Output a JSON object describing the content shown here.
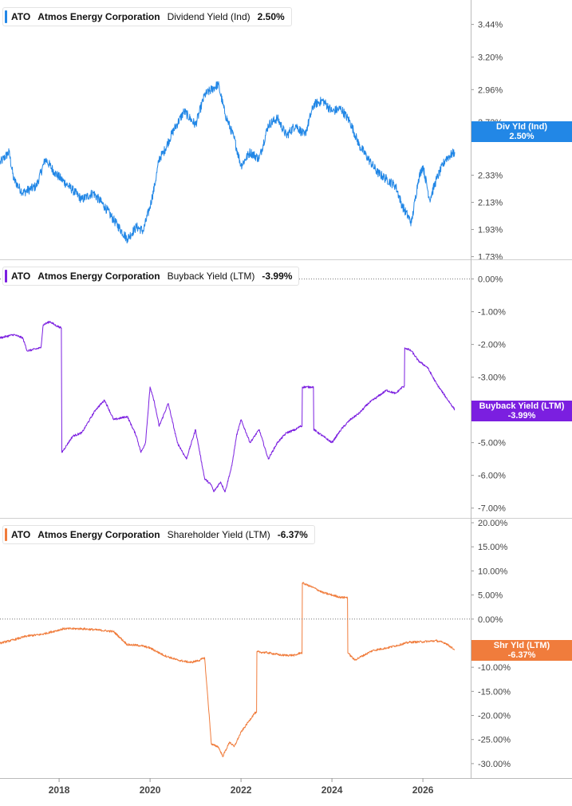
{
  "colors": {
    "dividend": "#2287e6",
    "buyback": "#7b1fe0",
    "shareholder": "#f07c3c"
  },
  "x_axis": {
    "ticks": [
      "2018",
      "2020",
      "2022",
      "2024",
      "2026"
    ]
  },
  "panels": [
    {
      "key": "dividend",
      "legend": {
        "ticker": "ATO",
        "company": "Atmos Energy Corporation",
        "metric": "Dividend Yield (Ind)",
        "value": "2.50%"
      },
      "flag": {
        "label": "Div Yld (Ind)",
        "value": "2.50%"
      },
      "y_ticks": [
        "3.44%",
        "3.20%",
        "2.96%",
        "2.72%",
        "2.33%",
        "2.13%",
        "1.93%",
        "1.73%"
      ]
    },
    {
      "key": "buyback",
      "legend": {
        "ticker": "ATO",
        "company": "Atmos Energy Corporation",
        "metric": "Buyback Yield (LTM)",
        "value": "-3.99%"
      },
      "flag": {
        "label": "Buyback Yield (LTM)",
        "value": "-3.99%"
      },
      "y_ticks": [
        "0.00%",
        "-1.00%",
        "-2.00%",
        "-3.00%",
        "-5.00%",
        "-6.00%",
        "-7.00%"
      ]
    },
    {
      "key": "shareholder",
      "legend": {
        "ticker": "ATO",
        "company": "Atmos Energy Corporation",
        "metric": "Shareholder Yield (LTM)",
        "value": "-6.37%"
      },
      "flag": {
        "label": "Shr Yld (LTM)",
        "value": "-6.37%"
      },
      "y_ticks": [
        "20.00%",
        "15.00%",
        "10.00%",
        "5.00%",
        "0.00%",
        "-5.00%",
        "-10.00%",
        "-15.00%",
        "-20.00%",
        "-25.00%",
        "-30.00%"
      ]
    }
  ],
  "chart_data": [
    {
      "type": "line",
      "title": "ATO Atmos Energy Corporation Dividend Yield (Ind)",
      "xlabel": "",
      "ylabel": "",
      "xlim": [
        2016.7,
        2026.7
      ],
      "ylim": [
        1.71,
        3.62
      ],
      "grid": false,
      "series": [
        {
          "name": "Dividend Yield (Ind)",
          "x": [
            2016.7,
            2016.9,
            2017.0,
            2017.2,
            2017.5,
            2017.7,
            2017.9,
            2018.05,
            2018.3,
            2018.5,
            2018.75,
            2019.0,
            2019.2,
            2019.5,
            2019.7,
            2019.85,
            2020.0,
            2020.1,
            2020.2,
            2020.3,
            2020.5,
            2020.75,
            2021.0,
            2021.2,
            2021.5,
            2021.65,
            2021.85,
            2022.0,
            2022.2,
            2022.4,
            2022.6,
            2022.8,
            2023.0,
            2023.2,
            2023.4,
            2023.6,
            2023.8,
            2024.0,
            2024.2,
            2024.4,
            2024.6,
            2024.8,
            2025.0,
            2025.2,
            2025.4,
            2025.55,
            2025.75,
            2025.9,
            2026.0,
            2026.15,
            2026.3,
            2026.5,
            2026.7
          ],
          "y": [
            2.42,
            2.5,
            2.3,
            2.2,
            2.25,
            2.45,
            2.35,
            2.3,
            2.22,
            2.15,
            2.2,
            2.1,
            2.0,
            1.86,
            1.95,
            1.92,
            2.1,
            2.25,
            2.45,
            2.5,
            2.65,
            2.8,
            2.7,
            2.92,
            3.0,
            2.78,
            2.6,
            2.4,
            2.5,
            2.45,
            2.7,
            2.75,
            2.62,
            2.7,
            2.62,
            2.85,
            2.88,
            2.8,
            2.82,
            2.72,
            2.55,
            2.45,
            2.35,
            2.3,
            2.25,
            2.1,
            1.98,
            2.3,
            2.4,
            2.15,
            2.3,
            2.45,
            2.5
          ]
        }
      ]
    },
    {
      "type": "line",
      "title": "ATO Atmos Energy Corporation Buyback Yield (LTM)",
      "xlabel": "",
      "ylabel": "",
      "xlim": [
        2016.7,
        2026.7
      ],
      "ylim": [
        -7.3,
        0.6
      ],
      "grid": false,
      "series": [
        {
          "name": "Buyback Yield (LTM)",
          "x": [
            2016.7,
            2017.0,
            2017.2,
            2017.3,
            2017.6,
            2017.65,
            2017.8,
            2017.9,
            2018.05,
            2018.06,
            2018.3,
            2018.5,
            2018.8,
            2019.0,
            2019.2,
            2019.5,
            2019.7,
            2019.8,
            2019.9,
            2020.0,
            2020.1,
            2020.2,
            2020.4,
            2020.6,
            2020.8,
            2021.0,
            2021.2,
            2021.35,
            2021.4,
            2021.55,
            2021.65,
            2021.8,
            2021.9,
            2022.0,
            2022.2,
            2022.4,
            2022.6,
            2022.8,
            2023.0,
            2023.2,
            2023.3,
            2023.35,
            2023.55,
            2023.6,
            2023.8,
            2024.0,
            2024.2,
            2024.4,
            2024.6,
            2024.8,
            2025.0,
            2025.2,
            2025.4,
            2025.55,
            2025.6,
            2025.75,
            2025.9,
            2026.1,
            2026.3,
            2026.5,
            2026.7
          ],
          "y": [
            -1.8,
            -1.7,
            -1.8,
            -2.2,
            -2.1,
            -1.4,
            -1.3,
            -1.4,
            -1.5,
            -5.3,
            -4.8,
            -4.7,
            -4.0,
            -3.7,
            -4.3,
            -4.2,
            -4.8,
            -5.3,
            -5.0,
            -3.3,
            -3.8,
            -4.5,
            -3.8,
            -5.0,
            -5.5,
            -4.6,
            -6.1,
            -6.3,
            -6.5,
            -6.2,
            -6.5,
            -5.7,
            -4.8,
            -4.3,
            -5.0,
            -4.6,
            -5.5,
            -5.0,
            -4.7,
            -4.6,
            -4.5,
            -3.3,
            -3.3,
            -4.6,
            -4.8,
            -5.0,
            -4.6,
            -4.3,
            -4.1,
            -3.8,
            -3.6,
            -3.4,
            -3.5,
            -3.3,
            -2.1,
            -2.2,
            -2.5,
            -2.7,
            -3.2,
            -3.6,
            -3.99
          ]
        }
      ]
    },
    {
      "type": "line",
      "title": "ATO Atmos Energy Corporation Shareholder Yield (LTM)",
      "xlabel": "",
      "ylabel": "",
      "xlim": [
        2016.7,
        2026.7
      ],
      "ylim": [
        -33.0,
        21.0
      ],
      "grid": false,
      "series": [
        {
          "name": "Shareholder Yield (LTM)",
          "x": [
            2016.7,
            2017.0,
            2017.3,
            2017.6,
            2017.9,
            2018.1,
            2018.5,
            2018.9,
            2019.2,
            2019.5,
            2019.8,
            2020.0,
            2020.3,
            2020.6,
            2020.9,
            2021.1,
            2021.2,
            2021.35,
            2021.5,
            2021.6,
            2021.75,
            2021.85,
            2022.0,
            2022.15,
            2022.3,
            2022.35,
            2022.6,
            2022.9,
            2023.2,
            2023.3,
            2023.35,
            2023.6,
            2023.8,
            2024.0,
            2024.2,
            2024.3,
            2024.35,
            2024.5,
            2024.6,
            2024.9,
            2025.2,
            2025.5,
            2025.7,
            2026.0,
            2026.3,
            2026.5,
            2026.7
          ],
          "y": [
            -5.0,
            -4.3,
            -3.5,
            -3.2,
            -2.5,
            -2.0,
            -2.0,
            -2.3,
            -2.6,
            -5.3,
            -5.5,
            -6.0,
            -7.5,
            -8.5,
            -9.0,
            -8.5,
            -8.0,
            -26.0,
            -26.5,
            -28.5,
            -25.5,
            -26.5,
            -23.5,
            -21.5,
            -19.5,
            -6.8,
            -7.0,
            -7.5,
            -7.5,
            -7.0,
            7.5,
            6.5,
            5.5,
            5.0,
            4.5,
            4.5,
            -7.0,
            -8.5,
            -8.0,
            -6.5,
            -6.0,
            -5.3,
            -4.8,
            -4.7,
            -4.5,
            -5.0,
            -6.37
          ]
        }
      ]
    }
  ]
}
